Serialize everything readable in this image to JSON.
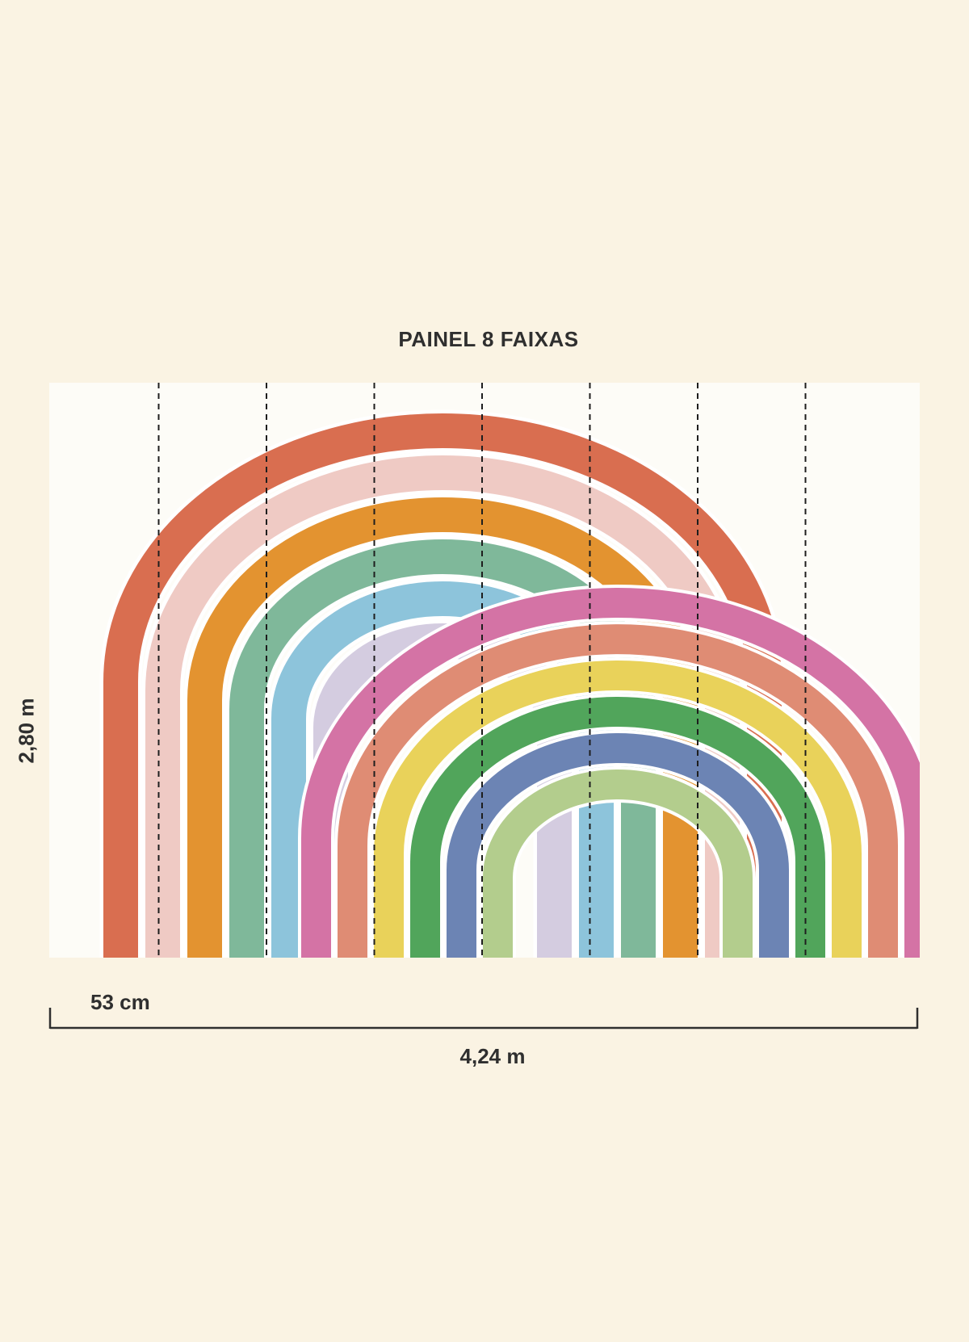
{
  "title": "PAINEL 8 FAIXAS",
  "dimensions": {
    "height": "2,80 m",
    "width": "4,24 m",
    "strip_width": "53 cm"
  },
  "panel": {
    "strip_count": 8,
    "background_color": "#FDFCF7"
  },
  "rainbows": [
    {
      "name": "back-rainbow",
      "band_colors": [
        "#D96E50",
        "#EFCAC4",
        "#E39330",
        "#7FB89A",
        "#8DC4DB",
        "#D4CCE0"
      ]
    },
    {
      "name": "front-rainbow",
      "band_colors": [
        "#D473A5",
        "#DF8C74",
        "#E9D25A",
        "#51A55B",
        "#6C84B4",
        "#B3CD8D"
      ]
    }
  ]
}
